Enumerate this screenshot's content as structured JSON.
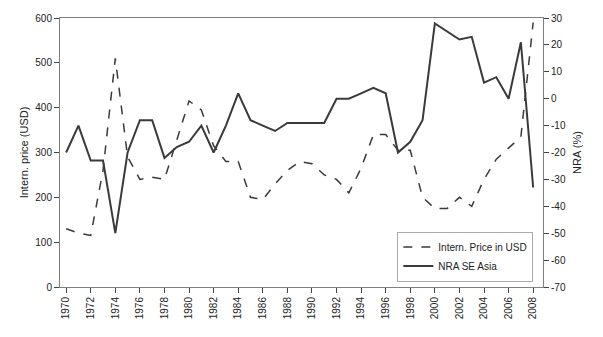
{
  "chart_data": {
    "type": "line",
    "ylabel": "Intern. price (USD)",
    "y2label": "NRA (%)",
    "x": [
      1970,
      1971,
      1972,
      1973,
      1974,
      1975,
      1976,
      1977,
      1978,
      1979,
      1980,
      1981,
      1982,
      1983,
      1984,
      1985,
      1986,
      1987,
      1988,
      1989,
      1990,
      1991,
      1992,
      1993,
      1994,
      1995,
      1996,
      1997,
      1998,
      1999,
      2000,
      2001,
      2002,
      2003,
      2004,
      2005,
      2006,
      2007,
      2008
    ],
    "series": [
      {
        "name": "Intern. Price in USD",
        "color": "#3a3a3a",
        "line_style": "dashed",
        "values": [
          130,
          120,
          115,
          260,
          510,
          290,
          240,
          245,
          240,
          325,
          415,
          395,
          315,
          280,
          280,
          200,
          195,
          230,
          260,
          280,
          275,
          250,
          240,
          210,
          265,
          340,
          340,
          305,
          305,
          200,
          175,
          175,
          200,
          180,
          240,
          285,
          310,
          335,
          590
        ]
      },
      {
        "name": "NRA SE Asia",
        "color": "#3a3a3a",
        "line_style": "solid",
        "axis": "y2",
        "values": [
          -20,
          -10,
          -23,
          -23,
          -50,
          -20,
          -8,
          -8,
          -22,
          -18,
          -16,
          -10,
          -20,
          -10,
          2,
          -8,
          -10,
          -12,
          -9,
          -9,
          -9,
          -9,
          0,
          0,
          2,
          4,
          2,
          -20,
          -16,
          -8,
          28,
          25,
          22,
          23,
          6,
          8,
          0,
          21,
          -33
        ]
      }
    ],
    "xlim": [
      1969.5,
      2008.8
    ],
    "xticks": [
      1970,
      1972,
      1974,
      1976,
      1978,
      1980,
      1982,
      1984,
      1986,
      1988,
      1990,
      1992,
      1994,
      1996,
      1998,
      2000,
      2002,
      2004,
      2006,
      2008
    ],
    "ylim": [
      0,
      600
    ],
    "yticks": [
      0,
      100,
      200,
      300,
      400,
      500,
      600
    ],
    "y2lim": [
      -70,
      30
    ],
    "y2ticks": [
      -70,
      -60,
      -50,
      -40,
      -30,
      -20,
      -10,
      0,
      10,
      20,
      30
    ],
    "grid": false,
    "legend": "lower right"
  }
}
